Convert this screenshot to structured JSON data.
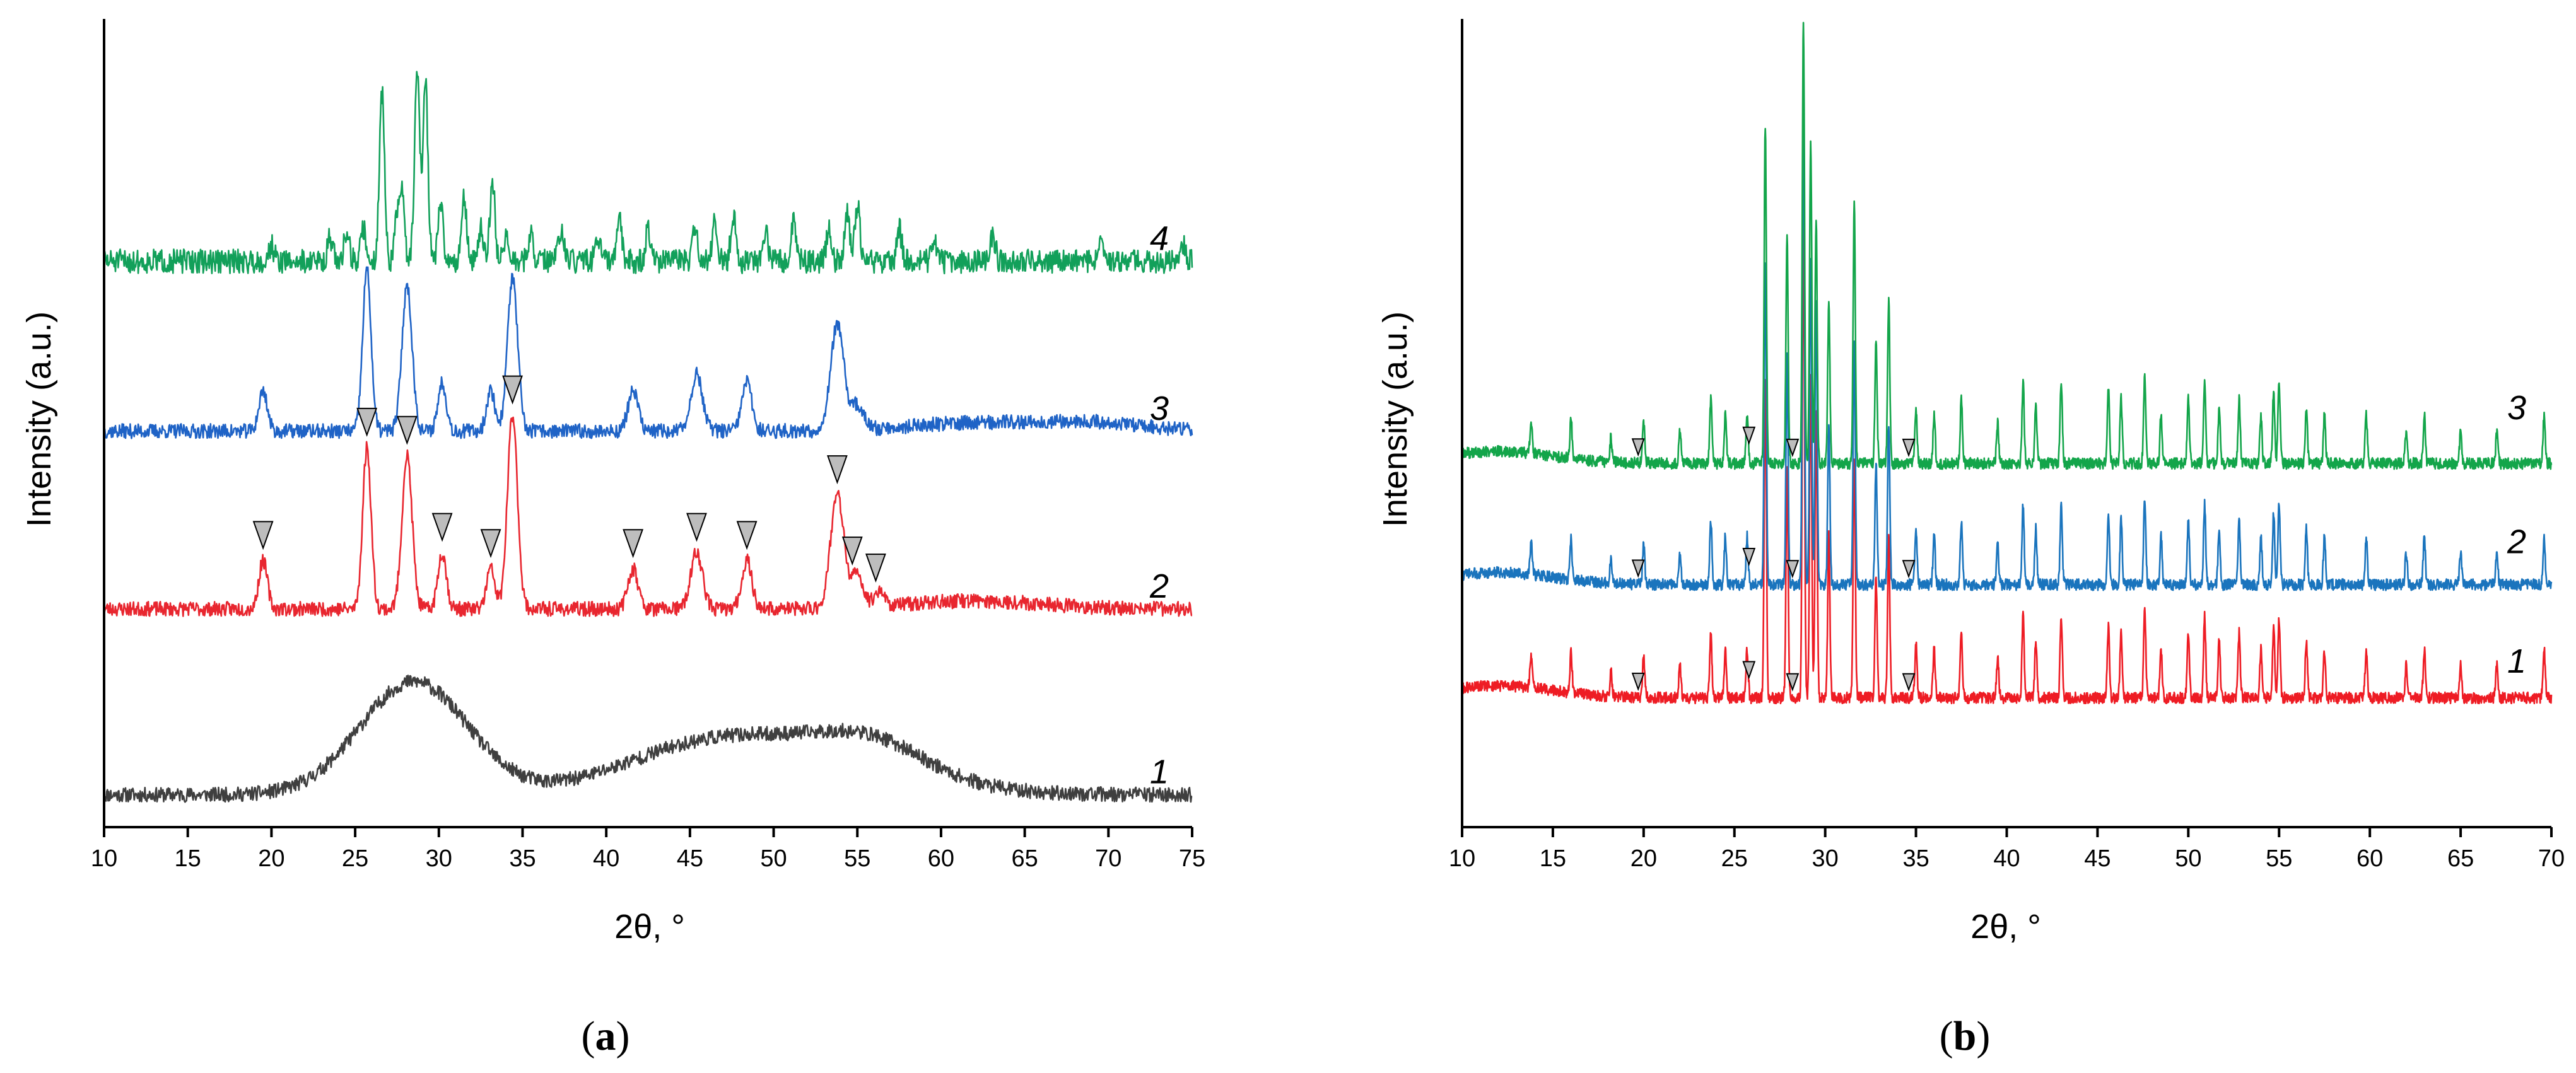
{
  "chart_data": [
    {
      "type": "line",
      "panel": "a",
      "panel_label": "a",
      "xlabel": "2θ, °",
      "ylabel": "Intensity (a.u.)",
      "xlim": [
        10,
        75
      ],
      "xticks": [
        10,
        15,
        20,
        25,
        30,
        35,
        40,
        45,
        50,
        55,
        60,
        65,
        70,
        75
      ],
      "ylim": [
        0,
        100
      ],
      "y_ticks_shown": false,
      "series": [
        {
          "name": "1",
          "label": "1",
          "color": "#3f3f3f",
          "baseline": 4,
          "noise": 0.9,
          "seed": 11,
          "humps": [
            [
              28.5,
              3.2,
              14
            ],
            [
              45,
              5,
              4
            ],
            [
              52,
              6,
              5
            ],
            [
              56,
              3,
              3
            ]
          ],
          "peaks": []
        },
        {
          "name": "2",
          "label": "2",
          "color": "#e8262f",
          "baseline": 27,
          "noise": 0.9,
          "seed": 23,
          "humps": [
            [
              62,
              4,
              1
            ]
          ],
          "peaks": [
            [
              19.5,
              6,
              0.25
            ],
            [
              25.7,
              20,
              0.25
            ],
            [
              28.1,
              19,
              0.3
            ],
            [
              30.2,
              7,
              0.25
            ],
            [
              33.1,
              5,
              0.25
            ],
            [
              34.4,
              24,
              0.3
            ],
            [
              41.6,
              5,
              0.3
            ],
            [
              45.4,
              7,
              0.35
            ],
            [
              48.4,
              6,
              0.3
            ],
            [
              53.8,
              14,
              0.4
            ],
            [
              55.0,
              4,
              0.35
            ],
            [
              56.3,
              2,
              0.3
            ]
          ],
          "markers": [
            19.5,
            25.7,
            28.1,
            30.2,
            33.1,
            34.4,
            41.6,
            45.4,
            48.4,
            53.8,
            54.7,
            56.1
          ]
        },
        {
          "name": "3",
          "label": "3",
          "color": "#1f63c6",
          "baseline": 49,
          "noise": 0.9,
          "seed": 37,
          "humps": [
            [
              62,
              4,
              1
            ],
            [
              69,
              3,
              1
            ]
          ],
          "peaks": [
            [
              19.5,
              5,
              0.25
            ],
            [
              25.7,
              20,
              0.25
            ],
            [
              28.1,
              18,
              0.3
            ],
            [
              30.2,
              6,
              0.25
            ],
            [
              33.1,
              5,
              0.25
            ],
            [
              34.4,
              19,
              0.3
            ],
            [
              41.6,
              5,
              0.3
            ],
            [
              45.4,
              7,
              0.35
            ],
            [
              48.4,
              6,
              0.3
            ],
            [
              53.8,
              13,
              0.4
            ],
            [
              55.0,
              3,
              0.35
            ]
          ]
        },
        {
          "name": "4",
          "label": "4",
          "color": "#12a05a",
          "baseline": 70,
          "noise": 1.5,
          "seed": 51,
          "humps": [],
          "peaks": [
            [
              20.0,
              2,
              0.15
            ],
            [
              23.5,
              3,
              0.15
            ],
            [
              24.5,
              4,
              0.15
            ],
            [
              25.5,
              4,
              0.15
            ],
            [
              26.6,
              21,
              0.15
            ],
            [
              27.5,
              5,
              0.15
            ],
            [
              27.8,
              8,
              0.15
            ],
            [
              28.7,
              24,
              0.15
            ],
            [
              29.2,
              22,
              0.15
            ],
            [
              30.1,
              7,
              0.15
            ],
            [
              31.5,
              8,
              0.15
            ],
            [
              32.5,
              4,
              0.15
            ],
            [
              33.2,
              10,
              0.15
            ],
            [
              34.0,
              3,
              0.15
            ],
            [
              35.5,
              3,
              0.15
            ],
            [
              37.3,
              4,
              0.15
            ],
            [
              39.5,
              3,
              0.15
            ],
            [
              40.8,
              5,
              0.15
            ],
            [
              42.5,
              4,
              0.15
            ],
            [
              45.3,
              4,
              0.15
            ],
            [
              46.5,
              5,
              0.15
            ],
            [
              47.6,
              6,
              0.15
            ],
            [
              49.5,
              4,
              0.15
            ],
            [
              51.2,
              5,
              0.15
            ],
            [
              53.3,
              4,
              0.15
            ],
            [
              54.4,
              6,
              0.15
            ],
            [
              55.0,
              7,
              0.15
            ],
            [
              57.5,
              4,
              0.15
            ],
            [
              59.6,
              3,
              0.15
            ],
            [
              63.1,
              3,
              0.15
            ],
            [
              69.5,
              3,
              0.15
            ],
            [
              74.5,
              2,
              0.15
            ]
          ]
        }
      ]
    },
    {
      "type": "line",
      "panel": "b",
      "panel_label": "b",
      "xlabel": "2θ, °",
      "ylabel": "Intensity (a.u.)",
      "xlim": [
        10,
        70
      ],
      "xticks": [
        10,
        15,
        20,
        25,
        30,
        35,
        40,
        45,
        50,
        55,
        60,
        65,
        70
      ],
      "ylim": [
        0,
        100
      ],
      "y_ticks_shown": false,
      "series": [
        {
          "name": "1",
          "label": "1",
          "color": "#ee1c24",
          "baseline": 16,
          "noise": 0.7,
          "seed": 61,
          "humps": [
            [
              12,
              3,
              1.5
            ]
          ],
          "peaks": [
            [
              13.8,
              4,
              0.06
            ],
            [
              16.0,
              5,
              0.06
            ],
            [
              18.2,
              3,
              0.06
            ],
            [
              20.0,
              5,
              0.06
            ],
            [
              22.0,
              4,
              0.06
            ],
            [
              23.7,
              8,
              0.06
            ],
            [
              24.5,
              6,
              0.06
            ],
            [
              25.7,
              6,
              0.06
            ],
            [
              26.7,
              40,
              0.06
            ],
            [
              27.9,
              28,
              0.06
            ],
            [
              28.8,
              60,
              0.06
            ],
            [
              29.2,
              40,
              0.06
            ],
            [
              29.5,
              35,
              0.06
            ],
            [
              30.2,
              20,
              0.06
            ],
            [
              31.6,
              30,
              0.06
            ],
            [
              32.8,
              15,
              0.06
            ],
            [
              33.5,
              20,
              0.06
            ],
            [
              35.0,
              7,
              0.06
            ],
            [
              36.0,
              6,
              0.06
            ],
            [
              37.5,
              8,
              0.06
            ],
            [
              39.5,
              5,
              0.06
            ],
            [
              40.9,
              10,
              0.06
            ],
            [
              41.6,
              7,
              0.06
            ],
            [
              43.0,
              10,
              0.06
            ],
            [
              45.6,
              9,
              0.06
            ],
            [
              46.3,
              8,
              0.06
            ],
            [
              47.6,
              11,
              0.06
            ],
            [
              48.5,
              6,
              0.06
            ],
            [
              50.0,
              8,
              0.06
            ],
            [
              50.9,
              10,
              0.06
            ],
            [
              51.7,
              7,
              0.06
            ],
            [
              52.8,
              8,
              0.06
            ],
            [
              54.0,
              6,
              0.06
            ],
            [
              54.7,
              9,
              0.06
            ],
            [
              55.0,
              10,
              0.06
            ],
            [
              56.5,
              7,
              0.06
            ],
            [
              57.5,
              6,
              0.06
            ],
            [
              59.8,
              6,
              0.06
            ],
            [
              62.0,
              4,
              0.06
            ],
            [
              63.0,
              6,
              0.06
            ],
            [
              65.0,
              4,
              0.06
            ],
            [
              67.0,
              4,
              0.06
            ],
            [
              69.6,
              6,
              0.06
            ]
          ],
          "markers": [
            19.7,
            25.8,
            28.2,
            34.6
          ]
        },
        {
          "name": "2",
          "label": "2",
          "color": "#1a74bd",
          "baseline": 30,
          "noise": 0.7,
          "seed": 73,
          "humps": [
            [
              12,
              3,
              1.5
            ]
          ],
          "peaks": [
            [
              13.8,
              4,
              0.06
            ],
            [
              16.0,
              5,
              0.06
            ],
            [
              18.2,
              3,
              0.06
            ],
            [
              20.0,
              5,
              0.06
            ],
            [
              22.0,
              4,
              0.06
            ],
            [
              23.7,
              8,
              0.06
            ],
            [
              24.5,
              6,
              0.06
            ],
            [
              25.7,
              6,
              0.06
            ],
            [
              26.7,
              40,
              0.06
            ],
            [
              27.9,
              28,
              0.06
            ],
            [
              28.8,
              60,
              0.06
            ],
            [
              29.2,
              40,
              0.06
            ],
            [
              29.5,
              35,
              0.06
            ],
            [
              30.2,
              20,
              0.06
            ],
            [
              31.6,
              30,
              0.06
            ],
            [
              32.8,
              15,
              0.06
            ],
            [
              33.5,
              20,
              0.06
            ],
            [
              35.0,
              7,
              0.06
            ],
            [
              36.0,
              6,
              0.06
            ],
            [
              37.5,
              8,
              0.06
            ],
            [
              39.5,
              5,
              0.06
            ],
            [
              40.9,
              10,
              0.06
            ],
            [
              41.6,
              7,
              0.06
            ],
            [
              43.0,
              10,
              0.06
            ],
            [
              45.6,
              9,
              0.06
            ],
            [
              46.3,
              8,
              0.06
            ],
            [
              47.6,
              11,
              0.06
            ],
            [
              48.5,
              6,
              0.06
            ],
            [
              50.0,
              8,
              0.06
            ],
            [
              50.9,
              10,
              0.06
            ],
            [
              51.7,
              7,
              0.06
            ],
            [
              52.8,
              8,
              0.06
            ],
            [
              54.0,
              6,
              0.06
            ],
            [
              54.7,
              9,
              0.06
            ],
            [
              55.0,
              10,
              0.06
            ],
            [
              56.5,
              7,
              0.06
            ],
            [
              57.5,
              6,
              0.06
            ],
            [
              59.8,
              6,
              0.06
            ],
            [
              62.0,
              4,
              0.06
            ],
            [
              63.0,
              6,
              0.06
            ],
            [
              65.0,
              4,
              0.06
            ],
            [
              67.0,
              4,
              0.06
            ],
            [
              69.6,
              6,
              0.06
            ]
          ],
          "markers": [
            19.7,
            25.8,
            28.2,
            34.6
          ]
        },
        {
          "name": "3",
          "label": "3",
          "color": "#13a54a",
          "baseline": 45,
          "noise": 0.7,
          "seed": 89,
          "humps": [
            [
              12,
              3,
              1.5
            ]
          ],
          "peaks": [
            [
              13.8,
              4,
              0.06
            ],
            [
              16.0,
              5,
              0.06
            ],
            [
              18.2,
              3,
              0.06
            ],
            [
              20.0,
              5,
              0.06
            ],
            [
              22.0,
              4,
              0.06
            ],
            [
              23.7,
              8,
              0.06
            ],
            [
              24.5,
              6,
              0.06
            ],
            [
              25.7,
              6,
              0.06
            ],
            [
              26.7,
              42,
              0.06
            ],
            [
              27.9,
              28,
              0.06
            ],
            [
              28.8,
              55,
              0.06
            ],
            [
              29.2,
              40,
              0.06
            ],
            [
              29.5,
              30,
              0.06
            ],
            [
              30.2,
              20,
              0.06
            ],
            [
              31.6,
              32,
              0.06
            ],
            [
              32.8,
              15,
              0.06
            ],
            [
              33.5,
              20,
              0.06
            ],
            [
              35.0,
              7,
              0.06
            ],
            [
              36.0,
              6,
              0.06
            ],
            [
              37.5,
              8,
              0.06
            ],
            [
              39.5,
              5,
              0.06
            ],
            [
              40.9,
              10,
              0.06
            ],
            [
              41.6,
              7,
              0.06
            ],
            [
              43.0,
              10,
              0.06
            ],
            [
              45.6,
              9,
              0.06
            ],
            [
              46.3,
              8,
              0.06
            ],
            [
              47.6,
              11,
              0.06
            ],
            [
              48.5,
              6,
              0.06
            ],
            [
              50.0,
              8,
              0.06
            ],
            [
              50.9,
              10,
              0.06
            ],
            [
              51.7,
              7,
              0.06
            ],
            [
              52.8,
              8,
              0.06
            ],
            [
              54.0,
              6,
              0.06
            ],
            [
              54.7,
              9,
              0.06
            ],
            [
              55.0,
              10,
              0.06
            ],
            [
              56.5,
              7,
              0.06
            ],
            [
              57.5,
              6,
              0.06
            ],
            [
              59.8,
              6,
              0.06
            ],
            [
              62.0,
              4,
              0.06
            ],
            [
              63.0,
              6,
              0.06
            ],
            [
              65.0,
              4,
              0.06
            ],
            [
              67.0,
              4,
              0.06
            ],
            [
              69.6,
              6,
              0.06
            ]
          ],
          "markers": [
            19.7,
            25.8,
            28.2,
            34.6
          ]
        }
      ]
    }
  ]
}
